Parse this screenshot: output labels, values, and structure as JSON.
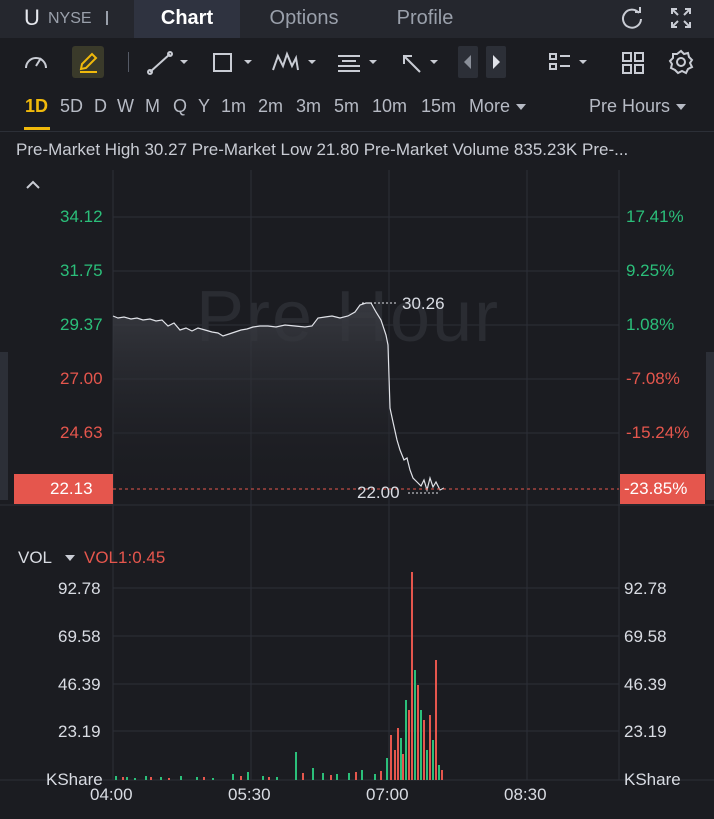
{
  "header": {
    "ticker": "U",
    "exchange": "NYSE",
    "tabs": [
      {
        "label": "Chart",
        "active": true
      },
      {
        "label": "Options",
        "active": false
      },
      {
        "label": "Profile",
        "active": false
      }
    ],
    "icons": [
      "refresh-icon",
      "expand-icon"
    ]
  },
  "toolbar": {
    "icons": [
      "gauge-icon",
      "pen-icon",
      "trendline-icon",
      "rectangle-icon",
      "pattern-icon",
      "text-tool-icon",
      "arrow-tool-icon",
      "prev-icon",
      "next-icon",
      "layout-list-icon",
      "grid-icon",
      "settings-icon"
    ]
  },
  "periods": {
    "items": [
      "1D",
      "5D",
      "D",
      "W",
      "M",
      "Q",
      "Y",
      "1m",
      "2m",
      "3m",
      "5m",
      "10m",
      "15m"
    ],
    "active": "1D",
    "more_label": "More",
    "session_label": "Pre Hours"
  },
  "info": {
    "line": "Pre-Market High 30.27 Pre-Market Low 21.80 Pre-Market Volume 835.23K Pre-..."
  },
  "price_panel": {
    "watermark": "Pre Hour",
    "left_labels": [
      "34.12",
      "31.75",
      "29.37",
      "27.00",
      "24.63"
    ],
    "right_labels": [
      "17.41%",
      "9.25%",
      "1.08%",
      "-7.08%",
      "-15.24%"
    ],
    "current_price": "22.13",
    "current_change": "-23.85%",
    "high_marker": "30.26",
    "low_marker": "22.00"
  },
  "volume_panel": {
    "title": "VOL",
    "indicator": "VOL1:0.45",
    "labels": [
      "92.78",
      "69.58",
      "46.39",
      "23.19"
    ],
    "unit": "KShare"
  },
  "x_axis": {
    "labels": [
      "04:00",
      "05:30",
      "07:00",
      "08:30"
    ]
  },
  "colors": {
    "up": "#2bbf7a",
    "down": "#e5564d",
    "accent": "#f0b90b",
    "background": "#1b1c21"
  }
}
